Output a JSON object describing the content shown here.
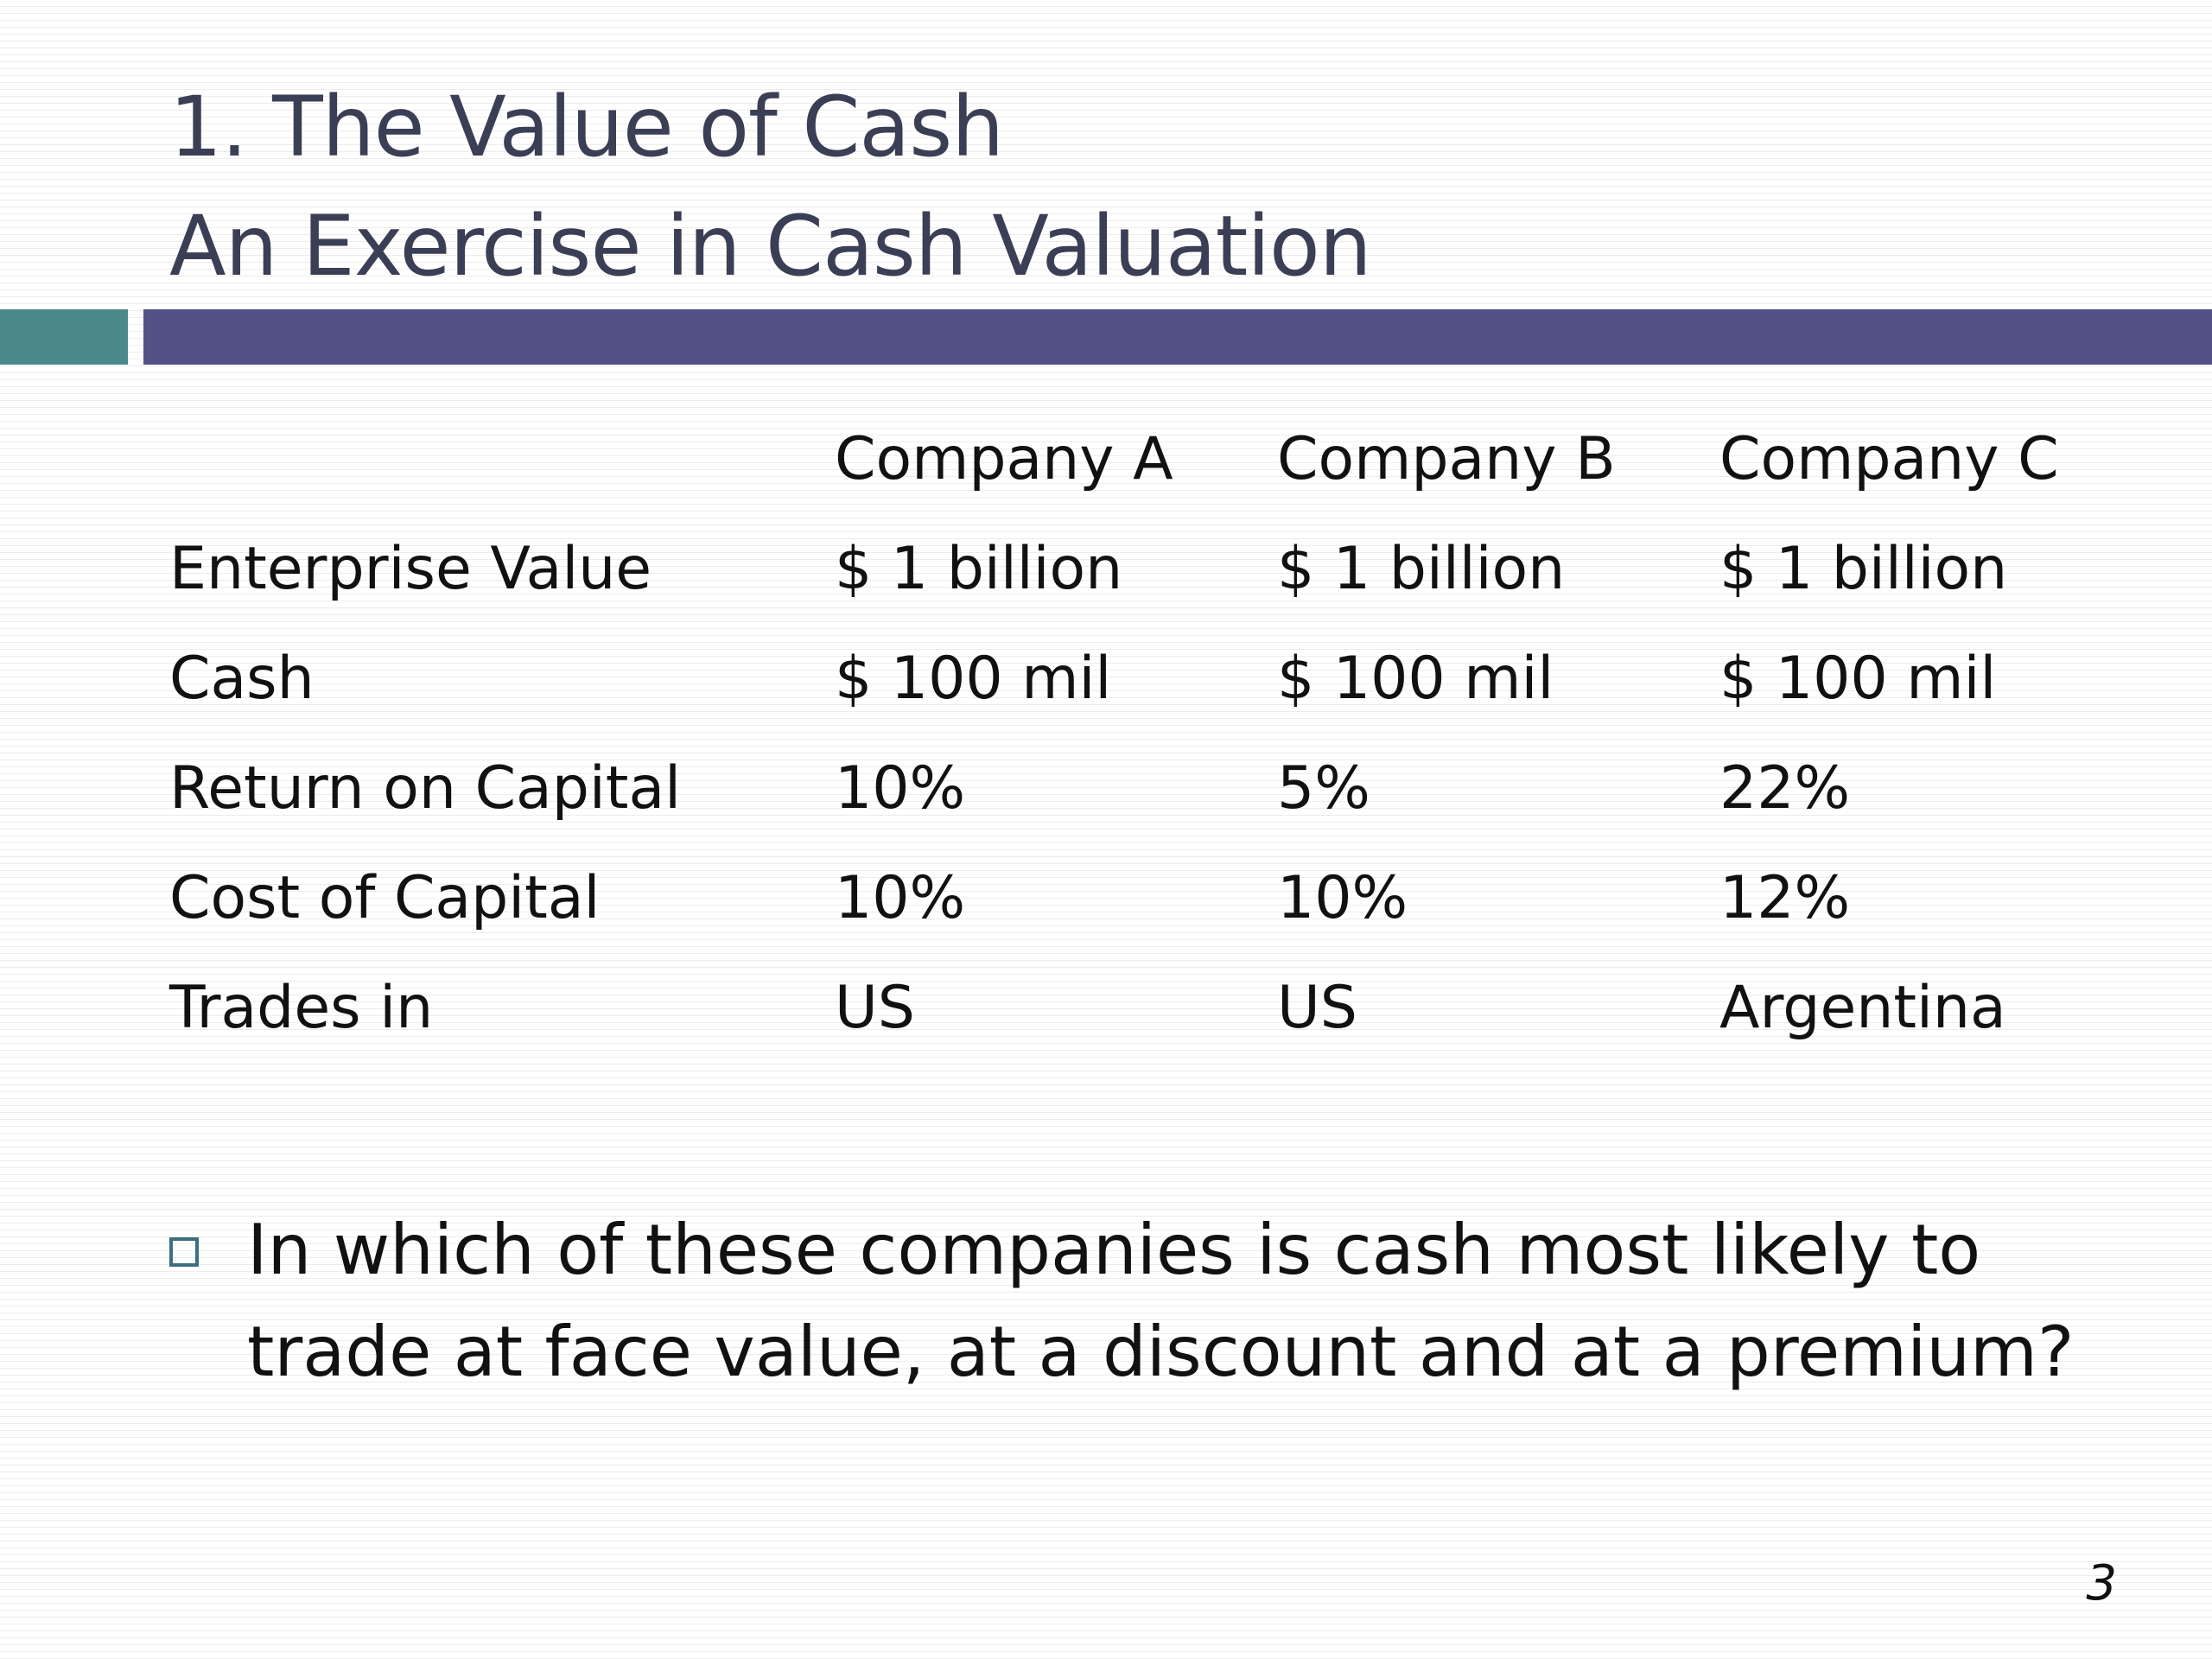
{
  "slide": {
    "title_line1": "1. The Value of Cash",
    "title_line2": "An Exercise in Cash Valuation",
    "slide_number": "3"
  },
  "colors": {
    "title": "#3b3f55",
    "accent_teal": "#4a8a8a",
    "accent_purple": "#535286",
    "bullet_marker": "#3b6f80"
  },
  "table": {
    "headers": [
      "",
      "Company A",
      "Company B",
      "Company C"
    ],
    "rows": [
      [
        "Enterprise Value",
        "$ 1 billion",
        "$ 1 billion",
        "$ 1 billion"
      ],
      [
        "Cash",
        "$ 100 mil",
        "$ 100 mil",
        "$ 100 mil"
      ],
      [
        "Return on Capital",
        "10%",
        "5%",
        "22%"
      ],
      [
        "Cost of Capital",
        "10%",
        "10%",
        "12%"
      ],
      [
        "Trades in",
        "US",
        "US",
        "Argentina"
      ]
    ]
  },
  "bullets": [
    {
      "icon": "square-bullet-icon",
      "line1": "In which of these companies is cash most likely to",
      "line2": "trade at face value, at a discount and at a premium?"
    }
  ]
}
